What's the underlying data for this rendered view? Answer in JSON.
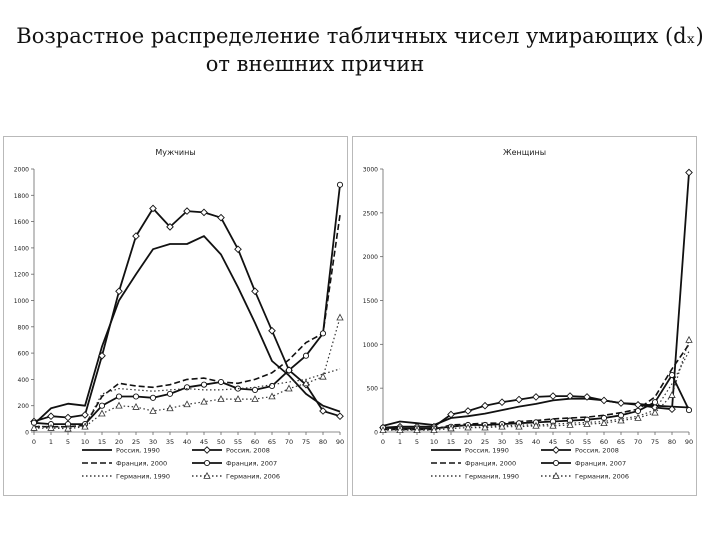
{
  "slide": {
    "title_line1": "Возрастное распределение табличных чисел умирающих (dₓ)",
    "title_line2": "от внешних причин"
  },
  "chart_data": [
    {
      "type": "line",
      "title": "Мужчины",
      "xlabel": "",
      "ylabel": "",
      "categories": [
        "0",
        "1",
        "5",
        "10",
        "15",
        "20",
        "25",
        "30",
        "35",
        "40",
        "45",
        "50",
        "55",
        "60",
        "65",
        "70",
        "75",
        "80",
        "90"
      ],
      "ylim": [
        0,
        2000
      ],
      "yticks": [
        "0",
        "200",
        "400",
        "600",
        "800",
        "1000",
        "1200",
        "1400",
        "1600",
        "1800",
        "2000"
      ],
      "grid": false,
      "legend_position": "bottom",
      "series": [
        {
          "name": "Россия, 1990",
          "style": "solid",
          "marker": "none",
          "values": [
            60,
            180,
            215,
            200,
            650,
            1000,
            1200,
            1390,
            1430,
            1430,
            1490,
            1350,
            1100,
            830,
            540,
            430,
            290,
            200,
            155
          ]
        },
        {
          "name": "Россия, 2008",
          "style": "solid",
          "marker": "diamond",
          "values": [
            80,
            120,
            110,
            130,
            580,
            1070,
            1490,
            1700,
            1560,
            1680,
            1670,
            1630,
            1390,
            1070,
            770,
            470,
            360,
            160,
            120
          ]
        },
        {
          "name": "Франция, 2000",
          "style": "dashed",
          "marker": "none",
          "values": [
            40,
            40,
            40,
            50,
            270,
            370,
            350,
            340,
            360,
            400,
            410,
            380,
            370,
            400,
            450,
            550,
            680,
            750,
            1650
          ]
        },
        {
          "name": "Франция, 2007",
          "style": "solid",
          "marker": "circle",
          "values": [
            70,
            60,
            60,
            60,
            200,
            270,
            270,
            260,
            290,
            340,
            360,
            380,
            330,
            320,
            350,
            470,
            580,
            750,
            1880
          ]
        },
        {
          "name": "Германия, 1990",
          "style": "dotted",
          "marker": "none",
          "values": [
            45,
            40,
            35,
            50,
            290,
            330,
            320,
            310,
            320,
            330,
            320,
            320,
            330,
            340,
            360,
            380,
            400,
            440,
            480
          ]
        },
        {
          "name": "Германия, 2006",
          "style": "dotted",
          "marker": "triangle",
          "values": [
            30,
            30,
            25,
            40,
            140,
            200,
            190,
            160,
            180,
            210,
            230,
            250,
            250,
            250,
            270,
            330,
            370,
            420,
            870
          ]
        }
      ]
    },
    {
      "type": "line",
      "title": "Женщины",
      "xlabel": "",
      "ylabel": "",
      "categories": [
        "0",
        "1",
        "5",
        "10",
        "15",
        "20",
        "25",
        "30",
        "35",
        "40",
        "45",
        "50",
        "55",
        "60",
        "65",
        "70",
        "75",
        "80",
        "90"
      ],
      "ylim": [
        0,
        3000
      ],
      "yticks": [
        "0",
        "500",
        "1000",
        "1500",
        "2000",
        "2500",
        "3000"
      ],
      "grid": false,
      "legend_position": "bottom",
      "series": [
        {
          "name": "Россия, 1990",
          "style": "solid",
          "marker": "none",
          "values": [
            70,
            120,
            100,
            80,
            160,
            180,
            210,
            250,
            290,
            320,
            360,
            380,
            380,
            360,
            330,
            320,
            300,
            290,
            280
          ]
        },
        {
          "name": "Россия, 2008",
          "style": "solid",
          "marker": "diamond",
          "values": [
            50,
            60,
            60,
            60,
            200,
            240,
            300,
            340,
            370,
            400,
            410,
            410,
            400,
            360,
            330,
            310,
            280,
            260,
            2960
          ]
        },
        {
          "name": "Франция, 2000",
          "style": "dashed",
          "marker": "none",
          "values": [
            30,
            30,
            30,
            30,
            80,
            90,
            100,
            100,
            120,
            130,
            150,
            160,
            170,
            190,
            220,
            260,
            400,
            720,
            1000
          ]
        },
        {
          "name": "Франция, 2007",
          "style": "solid",
          "marker": "circle",
          "values": [
            50,
            40,
            40,
            40,
            60,
            80,
            80,
            90,
            100,
            110,
            120,
            130,
            140,
            160,
            190,
            240,
            340,
            650,
            250
          ]
        },
        {
          "name": "Германия, 1990",
          "style": "dotted",
          "marker": "none",
          "values": [
            30,
            30,
            30,
            30,
            70,
            70,
            70,
            70,
            80,
            80,
            90,
            100,
            110,
            120,
            150,
            180,
            250,
            550,
            920
          ]
        },
        {
          "name": "Германия, 2006",
          "style": "dotted",
          "marker": "triangle",
          "values": [
            20,
            20,
            20,
            20,
            40,
            50,
            50,
            60,
            60,
            70,
            70,
            80,
            90,
            100,
            130,
            160,
            220,
            420,
            1050
          ]
        }
      ]
    }
  ]
}
